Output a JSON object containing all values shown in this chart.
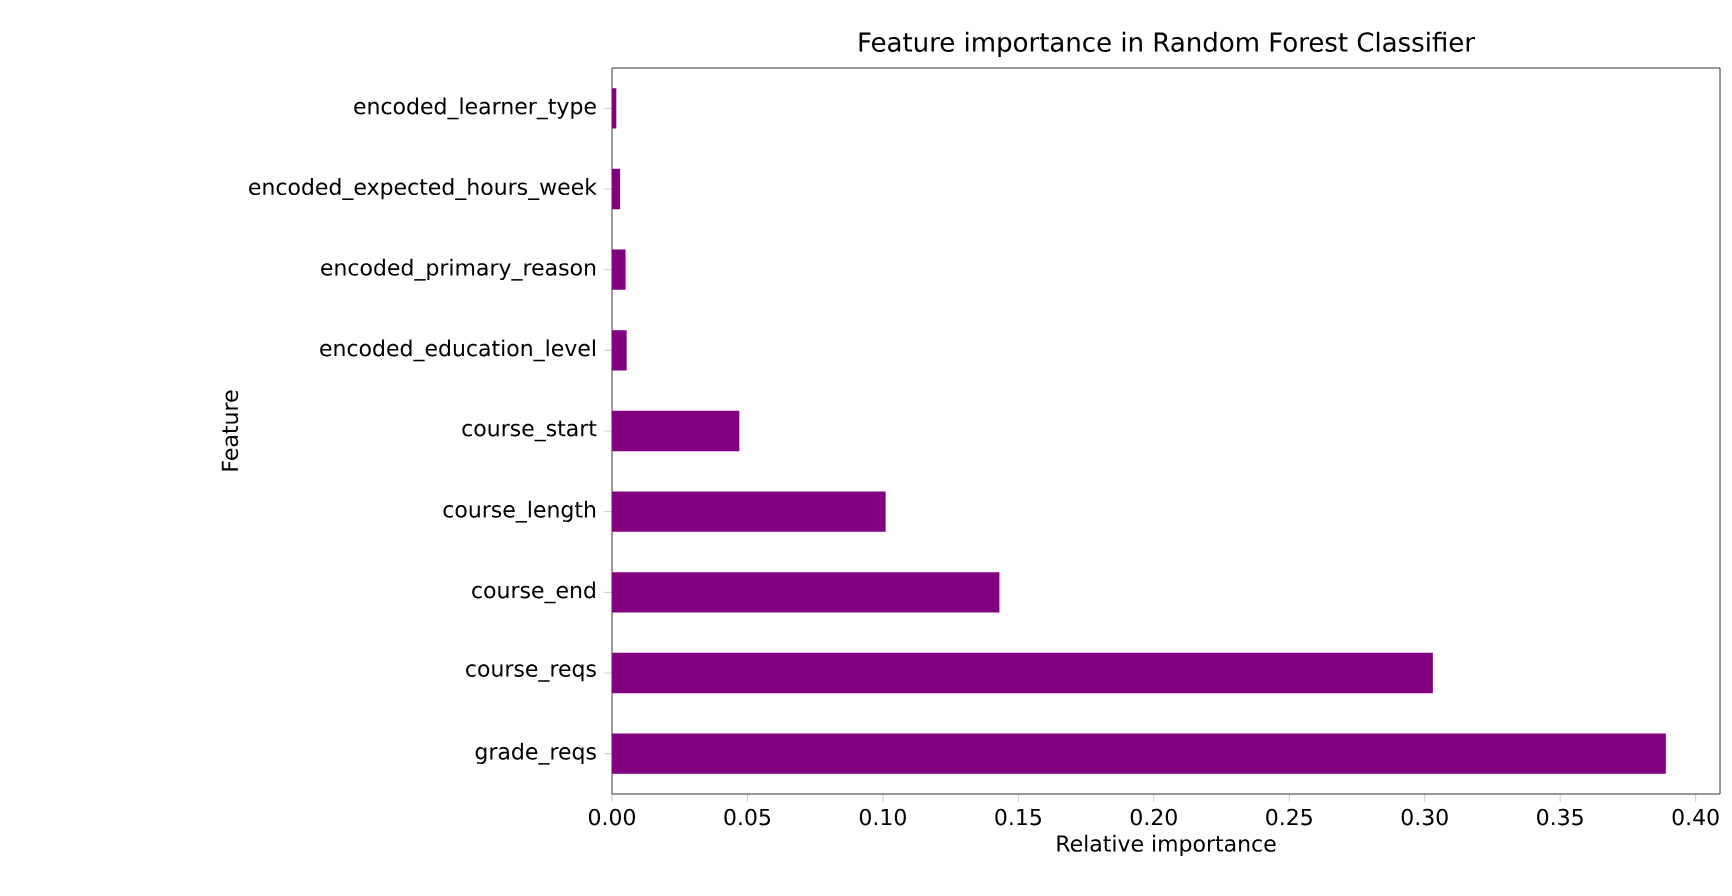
{
  "chart_data": {
    "type": "bar",
    "orientation": "horizontal",
    "title": "Feature importance in Random Forest Classifier",
    "xlabel": "Relative importance",
    "ylabel": "Feature",
    "categories": [
      "encoded_learner_type",
      "encoded_expected_hours_week",
      "encoded_primary_reason",
      "encoded_education_level",
      "course_start",
      "course_length",
      "course_end",
      "course_reqs",
      "grade_reqs"
    ],
    "values": [
      0.0016,
      0.003,
      0.005,
      0.0054,
      0.047,
      0.101,
      0.143,
      0.303,
      0.389
    ],
    "color": "#800080",
    "xlim": [
      0,
      0.409
    ],
    "xticks": [
      {
        "value": 0.0,
        "label": "0.00"
      },
      0.05,
      {
        "value": 0.1,
        "label": "0.10"
      },
      0.15,
      {
        "value": 0.2,
        "label": "0.20"
      },
      0.25,
      {
        "value": 0.3,
        "label": "0.30"
      },
      0.35,
      {
        "value": 0.4,
        "label": "0.40"
      }
    ],
    "grid": false
  }
}
